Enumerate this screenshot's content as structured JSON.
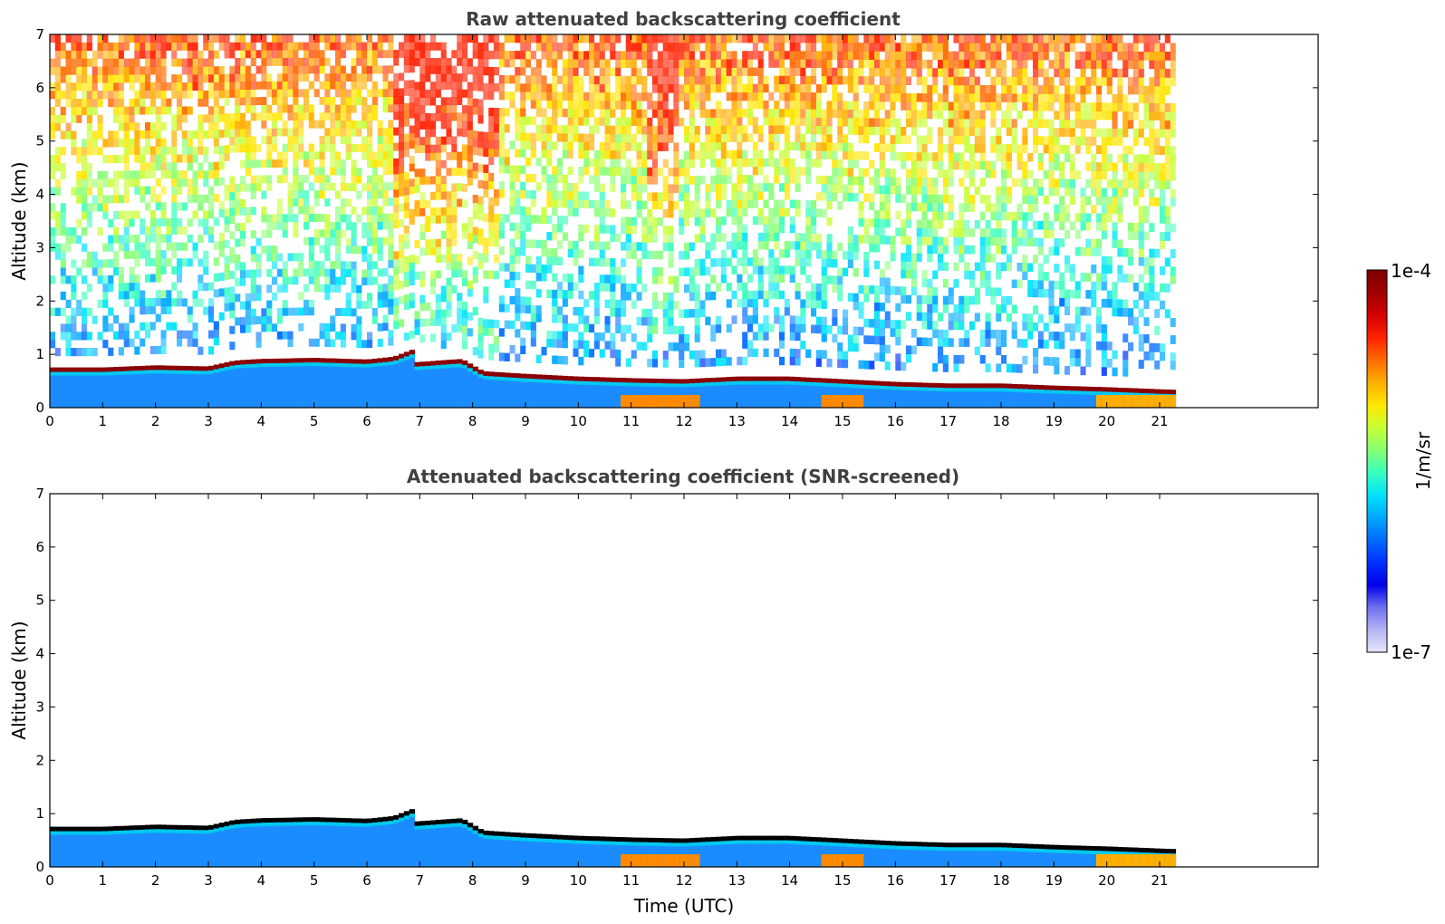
{
  "chart_data": [
    {
      "type": "heatmap",
      "title": "Raw attenuated backscattering coefficient",
      "xlabel": "",
      "ylabel": "Altitude (km)",
      "xlim": [
        0,
        24
      ],
      "ylim": [
        0,
        7
      ],
      "data_end_hour": 21.3,
      "x_ticks": [
        "0",
        "1",
        "2",
        "3",
        "4",
        "5",
        "6",
        "7",
        "8",
        "9",
        "10",
        "11",
        "12",
        "13",
        "14",
        "15",
        "16",
        "17",
        "18",
        "19",
        "20",
        "21"
      ],
      "y_ticks": [
        "0",
        "1",
        "2",
        "3",
        "4",
        "5",
        "6",
        "7"
      ],
      "screened": false,
      "layer_top_km": [
        [
          0,
          0.72
        ],
        [
          1,
          0.72
        ],
        [
          2,
          0.76
        ],
        [
          3,
          0.74
        ],
        [
          3.5,
          0.85
        ],
        [
          4,
          0.88
        ],
        [
          5,
          0.9
        ],
        [
          6,
          0.87
        ],
        [
          6.5,
          0.92
        ],
        [
          6.85,
          1.05
        ],
        [
          6.95,
          0.82
        ],
        [
          7.5,
          0.86
        ],
        [
          7.8,
          0.88
        ],
        [
          8.2,
          0.65
        ],
        [
          9,
          0.6
        ],
        [
          10,
          0.55
        ],
        [
          11,
          0.52
        ],
        [
          12,
          0.5
        ],
        [
          13,
          0.55
        ],
        [
          14,
          0.55
        ],
        [
          15,
          0.5
        ],
        [
          16,
          0.45
        ],
        [
          17,
          0.42
        ],
        [
          18,
          0.42
        ],
        [
          19,
          0.38
        ],
        [
          20,
          0.35
        ],
        [
          21.3,
          0.3
        ]
      ]
    },
    {
      "type": "heatmap",
      "title": "Attenuated backscattering coefficient (SNR-screened)",
      "xlabel": "Time (UTC)",
      "ylabel": "Altitude (km)",
      "xlim": [
        0,
        24
      ],
      "ylim": [
        0,
        7
      ],
      "data_end_hour": 21.3,
      "x_ticks": [
        "0",
        "1",
        "2",
        "3",
        "4",
        "5",
        "6",
        "7",
        "8",
        "9",
        "10",
        "11",
        "12",
        "13",
        "14",
        "15",
        "16",
        "17",
        "18",
        "19",
        "20",
        "21"
      ],
      "y_ticks": [
        "0",
        "1",
        "2",
        "3",
        "4",
        "5",
        "6",
        "7"
      ],
      "screened": true
    }
  ],
  "colorbar": {
    "label": "1/m/sr",
    "max_label": "1e-4",
    "min_label": "1e-7",
    "colors": [
      "#7f0000",
      "#a00000",
      "#d40000",
      "#ff2000",
      "#ff6a00",
      "#ffae00",
      "#ffe600",
      "#c8ff36",
      "#86ff73",
      "#3affbd",
      "#00e4f8",
      "#00a8ff",
      "#006cff",
      "#0030ff",
      "#0000ea",
      "#6e6ef0",
      "#b4b4f5",
      "#e6e6fa"
    ]
  }
}
